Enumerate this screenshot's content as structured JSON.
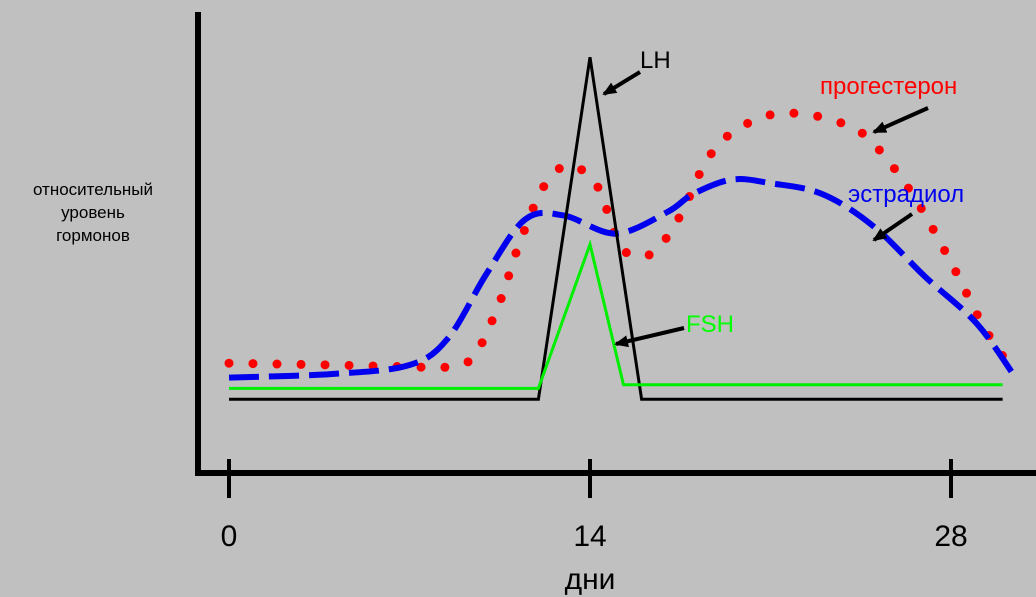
{
  "chart_data": {
    "type": "line",
    "ylabel": [
      "относительный",
      "уровень",
      "гормонов"
    ],
    "xlabel": "дни",
    "x_ticks": [
      0,
      14,
      28
    ],
    "xlim": [
      0,
      30.5
    ],
    "ylim": [
      0,
      10
    ],
    "grid": false,
    "series": [
      {
        "name": "LH",
        "style": "solid",
        "color": "#000000",
        "points": [
          [
            0,
            0.3
          ],
          [
            12,
            0.3
          ],
          [
            14,
            9.8
          ],
          [
            16,
            0.3
          ],
          [
            30,
            0.3
          ]
        ]
      },
      {
        "name": "FSH",
        "style": "solid",
        "color": "#00ee00",
        "points": [
          [
            0,
            0.6
          ],
          [
            12,
            0.6
          ],
          [
            14,
            4.6
          ],
          [
            15.3,
            0.7
          ],
          [
            30,
            0.7
          ]
        ]
      },
      {
        "name": "эстрадиол",
        "style": "dashed",
        "color": "#0000ee",
        "points": [
          [
            0,
            0.9
          ],
          [
            4,
            1.0
          ],
          [
            7,
            1.25
          ],
          [
            8.5,
            2.0
          ],
          [
            10,
            3.8
          ],
          [
            11.5,
            5.3
          ],
          [
            13,
            5.4
          ],
          [
            15,
            4.9
          ],
          [
            17,
            5.5
          ],
          [
            18,
            6.0
          ],
          [
            19.5,
            6.4
          ],
          [
            21,
            6.3
          ],
          [
            23,
            6.0
          ],
          [
            25,
            5.1
          ],
          [
            27,
            3.7
          ],
          [
            29,
            2.4
          ],
          [
            30.5,
            0.9
          ]
        ]
      },
      {
        "name": "прогестерон",
        "style": "dotted",
        "color": "#ff0000",
        "points": [
          [
            0,
            1.3
          ],
          [
            4,
            1.25
          ],
          [
            7,
            1.2
          ],
          [
            8.5,
            1.2
          ],
          [
            9.5,
            1.5
          ],
          [
            10.5,
            3.0
          ],
          [
            11.2,
            4.5
          ],
          [
            12.2,
            6.2
          ],
          [
            13.2,
            6.8
          ],
          [
            14.3,
            6.2
          ],
          [
            15,
            4.8
          ],
          [
            15.6,
            4.3
          ],
          [
            16.5,
            4.4
          ],
          [
            17.5,
            5.4
          ],
          [
            18.5,
            6.9
          ],
          [
            19.5,
            7.7
          ],
          [
            21,
            8.2
          ],
          [
            22.5,
            8.2
          ],
          [
            24,
            7.9
          ],
          [
            25,
            7.4
          ],
          [
            26.5,
            6.0
          ],
          [
            28,
            4.1
          ],
          [
            29.2,
            2.4
          ],
          [
            30.1,
            1.4
          ]
        ]
      }
    ],
    "annotations": [
      {
        "series": "LH",
        "text": "LH",
        "color": "#000000"
      },
      {
        "series": "прогестерон",
        "text": "прогестерон",
        "color": "#ff0000"
      },
      {
        "series": "эстрадиол",
        "text": "эстрадиол",
        "color": "#0000ee"
      },
      {
        "series": "FSH",
        "text": "FSH",
        "color": "#00ff00"
      }
    ]
  }
}
